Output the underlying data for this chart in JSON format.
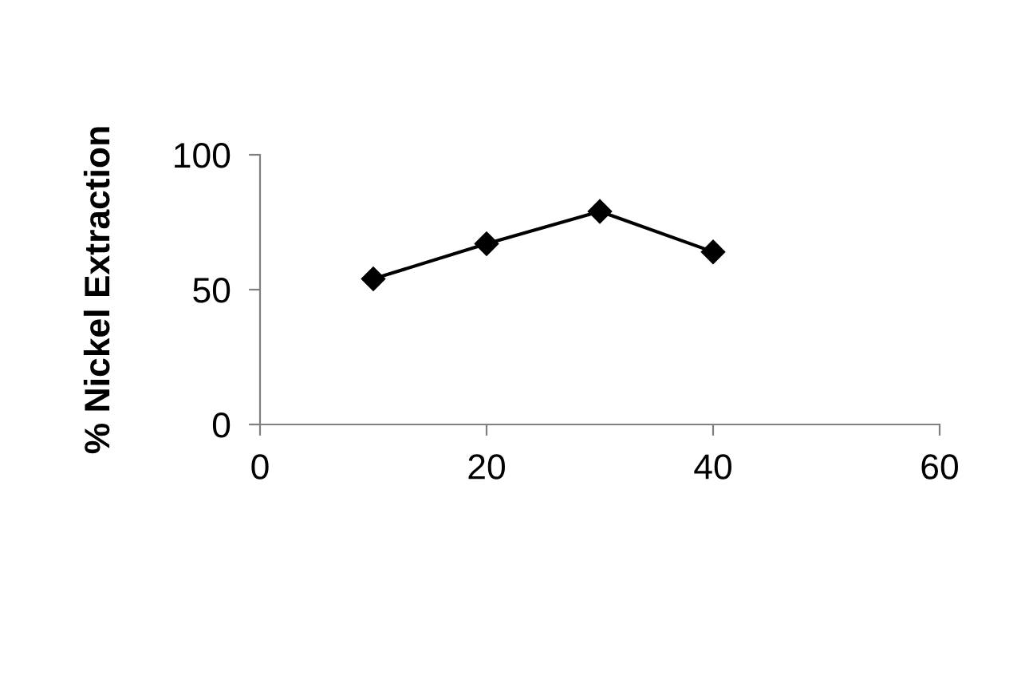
{
  "chart_data": {
    "type": "line",
    "ylabel": "% Nickel Extraction",
    "x": [
      10,
      20,
      30,
      40
    ],
    "series": [
      {
        "color": "#000000",
        "values": [
          54,
          67,
          79,
          64
        ]
      }
    ],
    "xlim": [
      0,
      60
    ],
    "xticks": [
      0,
      20,
      40,
      60
    ],
    "ylim": [
      0,
      100
    ],
    "yticks": [
      0,
      50,
      100
    ],
    "marker": "diamond",
    "line_style": "solid",
    "grid": false,
    "legend": false
  }
}
